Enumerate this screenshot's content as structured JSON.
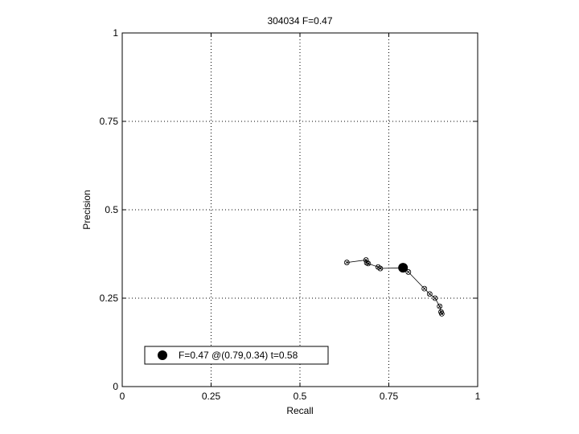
{
  "chart_data": {
    "type": "line",
    "title": "304034 F=0.47",
    "xlabel": "Recall",
    "ylabel": "Precision",
    "xlim": [
      0,
      1
    ],
    "ylim": [
      0,
      1
    ],
    "grid": true,
    "xticks": [
      0,
      0.25,
      0.5,
      0.75,
      1
    ],
    "xtick_labels": [
      "0",
      "0.25",
      "0.5",
      "0.75",
      "1"
    ],
    "yticks": [
      0,
      0.25,
      0.5,
      0.75,
      1
    ],
    "ytick_labels": [
      "0",
      "0.25",
      "0.5",
      "0.75",
      "1"
    ],
    "series": [
      {
        "x": [
          0.632,
          0.686,
          0.688,
          0.692,
          0.72,
          0.726,
          0.79,
          0.805,
          0.85,
          0.865,
          0.88,
          0.893,
          0.897,
          0.899
        ],
        "y": [
          0.351,
          0.358,
          0.35,
          0.348,
          0.338,
          0.334,
          0.336,
          0.324,
          0.277,
          0.262,
          0.25,
          0.227,
          0.211,
          0.206
        ]
      }
    ],
    "best_point": {
      "x": 0.79,
      "y": 0.336
    },
    "legend": {
      "placement": "bottom-left",
      "label": "F=0.47 @(0.79,0.34) t=0.58"
    }
  }
}
